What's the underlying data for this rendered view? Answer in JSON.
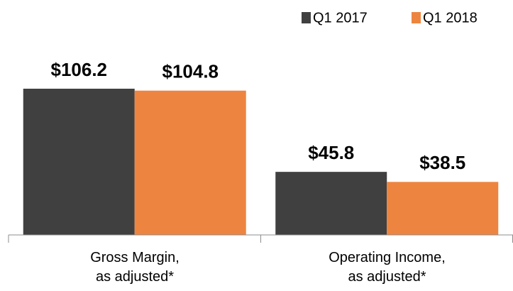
{
  "chart_data": {
    "type": "bar",
    "categories": [
      "Gross Margin,\nas adjusted*",
      "Operating Income,\nas adjusted*"
    ],
    "series": [
      {
        "name": "Q1 2017",
        "color": "#404040",
        "values": [
          106.2,
          45.8
        ],
        "value_labels": [
          "$106.2",
          "$45.8"
        ]
      },
      {
        "name": "Q1 2018",
        "color": "#ed8540",
        "values": [
          104.8,
          38.5
        ],
        "value_labels": [
          "$104.8",
          "$38.5"
        ]
      }
    ],
    "ylim": [
      0,
      150
    ],
    "legend": "top-right"
  }
}
